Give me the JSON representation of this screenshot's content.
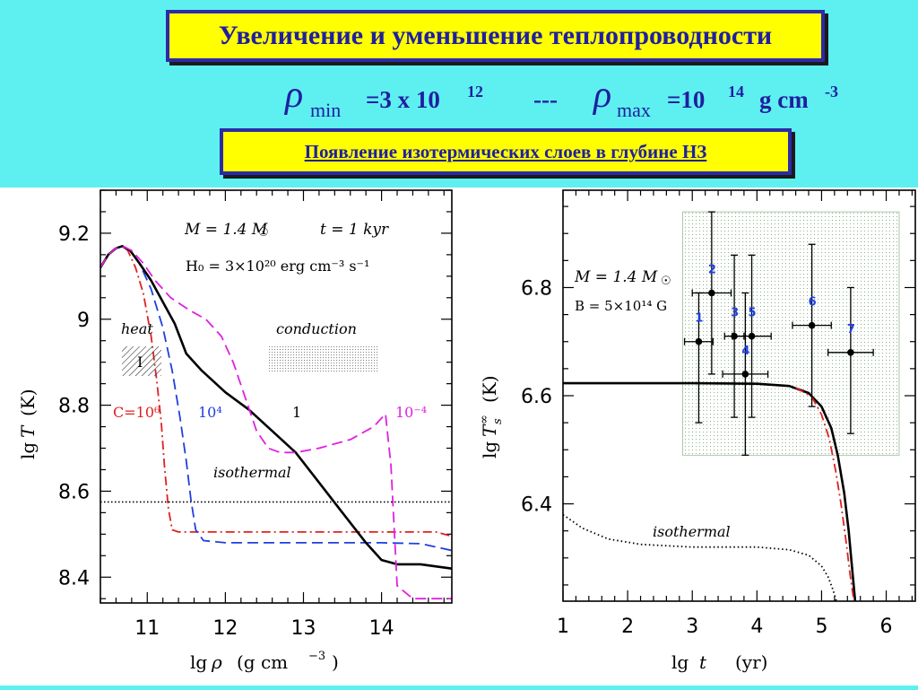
{
  "header": {
    "title": "Увеличение и уменьшение теплопроводности",
    "formula": {
      "rho_symbol": "ρ",
      "min_sub": "min",
      "min_value": "=3 x 10",
      "min_exp": "12",
      "separator": "---",
      "max_sub": "max",
      "max_value": "=10",
      "max_exp": "14",
      "unit": "g cm",
      "unit_exp": "-3"
    },
    "subtitle": "Появление изотермических слоев в глубине НЗ"
  },
  "colors": {
    "background": "#5EF0F0",
    "box_fill": "#FFFF00",
    "box_text": "#1F1FA0",
    "red": "#E02020",
    "blue": "#1F3FE0",
    "magenta": "#E020E0",
    "black": "#000000"
  },
  "chart_data": [
    {
      "type": "line",
      "xlabel_prefix": "lg",
      "xlabel_var": "ρ",
      "xlabel_unit": "(g cm",
      "xlabel_exp": "−3",
      "xlabel_close": ")",
      "ylabel_prefix": "lg",
      "ylabel_var": "T",
      "ylabel_unit": "(K)",
      "xlim": [
        10.4,
        14.9
      ],
      "ylim": [
        8.34,
        9.3
      ],
      "x_ticks": [
        11,
        12,
        13,
        14
      ],
      "x_tick_labels": [
        "11",
        "12",
        "13",
        "14"
      ],
      "y_ticks": [
        8.4,
        8.6,
        8.8,
        9.0,
        9.2
      ],
      "y_tick_labels": [
        "8.4",
        "8.6",
        "8.8",
        "9",
        "9.2"
      ],
      "annotations": {
        "params_line1_a": "M = 1.4 M",
        "params_line1_b": "t = 1  kyr",
        "params_line2": "H₀ = 3×10²⁰ erg cm⁻³ s⁻¹",
        "heat": "heat",
        "heat_roman": "I",
        "conduction": "conduction",
        "isothermal": "isothermal",
        "label_C": "C=10⁶",
        "label_1e4": "10⁴",
        "label_1": "1",
        "label_1em4": "10⁻⁴"
      },
      "isothermal_level": 8.575,
      "series": [
        {
          "name": "C=10⁶",
          "color": "#E02020",
          "style": "dashdot",
          "x": [
            10.4,
            10.5,
            10.6,
            10.68,
            10.75,
            10.85,
            10.95,
            11.05,
            11.12,
            11.18,
            11.22,
            11.27,
            11.32,
            11.4,
            11.6,
            12.0,
            13.0,
            14.0,
            14.7,
            14.9
          ],
          "y": [
            9.12,
            9.15,
            9.165,
            9.17,
            9.16,
            9.12,
            9.06,
            8.96,
            8.86,
            8.76,
            8.66,
            8.56,
            8.51,
            8.505,
            8.505,
            8.505,
            8.505,
            8.505,
            8.505,
            8.495
          ]
        },
        {
          "name": "10⁴",
          "color": "#1F3FE0",
          "style": "dash",
          "x": [
            10.4,
            10.5,
            10.6,
            10.68,
            10.78,
            10.9,
            11.05,
            11.2,
            11.32,
            11.42,
            11.5,
            11.56,
            11.62,
            11.72,
            12.0,
            13.0,
            14.0,
            14.5,
            14.9
          ],
          "y": [
            9.12,
            9.15,
            9.165,
            9.17,
            9.16,
            9.13,
            9.07,
            8.98,
            8.88,
            8.77,
            8.67,
            8.58,
            8.51,
            8.485,
            8.48,
            8.48,
            8.48,
            8.478,
            8.462
          ]
        },
        {
          "name": "1",
          "color": "#000000",
          "style": "solid",
          "x": [
            10.4,
            10.5,
            10.6,
            10.68,
            10.78,
            10.9,
            11.05,
            11.2,
            11.35,
            11.5,
            11.7,
            12.0,
            12.3,
            12.6,
            12.9,
            13.2,
            13.5,
            13.8,
            14.0,
            14.2,
            14.5,
            14.9
          ],
          "y": [
            9.12,
            9.15,
            9.165,
            9.17,
            9.16,
            9.13,
            9.09,
            9.04,
            8.99,
            8.92,
            8.88,
            8.83,
            8.79,
            8.74,
            8.69,
            8.62,
            8.55,
            8.48,
            8.44,
            8.43,
            8.43,
            8.42
          ]
        },
        {
          "name": "10⁻⁴",
          "color": "#E020E0",
          "style": "dash",
          "x": [
            10.4,
            10.5,
            10.6,
            10.68,
            10.8,
            10.95,
            11.1,
            11.3,
            11.55,
            11.75,
            11.95,
            12.1,
            12.25,
            12.4,
            12.55,
            12.7,
            12.9,
            13.2,
            13.6,
            13.9,
            14.05,
            14.12,
            14.2,
            14.4,
            14.6,
            14.9
          ],
          "y": [
            9.12,
            9.15,
            9.165,
            9.17,
            9.16,
            9.13,
            9.09,
            9.05,
            9.02,
            9.0,
            8.96,
            8.9,
            8.82,
            8.74,
            8.7,
            8.69,
            8.69,
            8.7,
            8.72,
            8.75,
            8.78,
            8.66,
            8.38,
            8.35,
            8.35,
            8.35
          ]
        }
      ]
    },
    {
      "type": "line",
      "xlabel_prefix": "lg",
      "xlabel_var": "t",
      "xlabel_unit": "(yr)",
      "ylabel_prefix": "lg",
      "ylabel_var": "T",
      "ylabel_sup": "∞",
      "ylabel_sub": "s",
      "ylabel_unit": "(K)",
      "xlim": [
        1,
        6.45
      ],
      "ylim": [
        6.22,
        6.98
      ],
      "x_ticks": [
        1,
        2,
        3,
        4,
        5,
        6
      ],
      "x_tick_labels": [
        "1",
        "2",
        "3",
        "4",
        "5",
        "6"
      ],
      "y_ticks": [
        6.4,
        6.6,
        6.8
      ],
      "y_tick_labels": [
        "6.4",
        "6.6",
        "6.8"
      ],
      "annotations": {
        "params_line1": "M = 1.4 M",
        "params_line2": "B = 5×10¹⁴ G",
        "isothermal": "isothermal"
      },
      "observation_box": {
        "x": [
          2.85,
          6.2
        ],
        "y": [
          6.49,
          6.94
        ]
      },
      "observations": [
        {
          "label": "1",
          "x": 3.1,
          "y": 6.7,
          "xerr": 0.22,
          "yerr_low": 0.15,
          "yerr_high": 0.09
        },
        {
          "label": "2",
          "x": 3.3,
          "y": 6.79,
          "xerr": 0.3,
          "yerr_low": 0.15,
          "yerr_high": 0.15
        },
        {
          "label": "3",
          "x": 3.65,
          "y": 6.71,
          "xerr": 0.15,
          "yerr_low": 0.15,
          "yerr_high": 0.15
        },
        {
          "label": "4",
          "x": 3.82,
          "y": 6.64,
          "xerr": 0.35,
          "yerr_low": 0.15,
          "yerr_high": 0.15
        },
        {
          "label": "5",
          "x": 3.92,
          "y": 6.71,
          "xerr": 0.3,
          "yerr_low": 0.15,
          "yerr_high": 0.15
        },
        {
          "label": "6",
          "x": 4.85,
          "y": 6.73,
          "xerr": 0.3,
          "yerr_low": 0.15,
          "yerr_high": 0.15
        },
        {
          "label": "7",
          "x": 5.45,
          "y": 6.68,
          "xerr": 0.35,
          "yerr_low": 0.15,
          "yerr_high": 0.12
        }
      ],
      "series": [
        {
          "name": "black",
          "color": "#000000",
          "style": "solid",
          "x": [
            1,
            2,
            3,
            4,
            4.5,
            4.8,
            5.0,
            5.15,
            5.25,
            5.35,
            5.42,
            5.48,
            5.52
          ],
          "y": [
            6.623,
            6.623,
            6.623,
            6.622,
            6.618,
            6.605,
            6.58,
            6.54,
            6.49,
            6.42,
            6.35,
            6.27,
            6.22
          ]
        },
        {
          "name": "red",
          "color": "#E02020",
          "style": "dashdot",
          "x": [
            4.6,
            4.85,
            5.0,
            5.12,
            5.22,
            5.3,
            5.38,
            5.44,
            5.5
          ],
          "y": [
            6.615,
            6.598,
            6.565,
            6.52,
            6.46,
            6.4,
            6.33,
            6.27,
            6.22
          ]
        },
        {
          "name": "isothermal",
          "color": "#000000",
          "style": "dot",
          "x": [
            1,
            1.3,
            1.7,
            2.2,
            3.0,
            4.0,
            4.5,
            4.8,
            5.0,
            5.1,
            5.18,
            5.23
          ],
          "y": [
            6.38,
            6.355,
            6.335,
            6.325,
            6.32,
            6.32,
            6.315,
            6.305,
            6.285,
            6.265,
            6.24,
            6.22
          ]
        }
      ]
    }
  ]
}
